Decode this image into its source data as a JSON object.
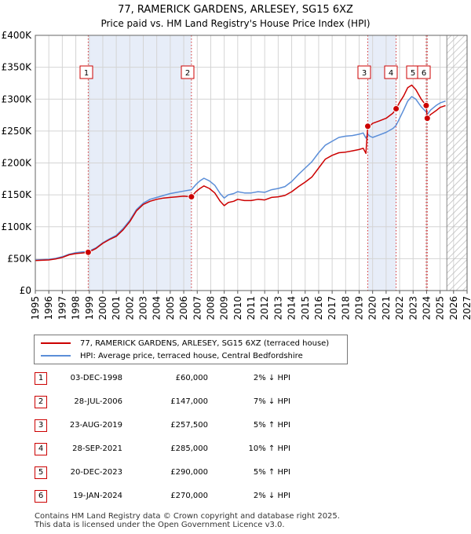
{
  "title_line1": "77, RAMERICK GARDENS, ARLESEY, SG15 6XZ",
  "title_line2": "Price paid vs. HM Land Registry's House Price Index (HPI)",
  "chart_data": {
    "type": "line",
    "title": "77, RAMERICK GARDENS, ARLESEY, SG15 6XZ",
    "subtitle": "Price paid vs. HM Land Registry's House Price Index (HPI)",
    "xlim": [
      1995,
      2027
    ],
    "ylim": [
      0,
      400000
    ],
    "x_ticks": [
      "1995",
      "1996",
      "1997",
      "1998",
      "1999",
      "2000",
      "2001",
      "2002",
      "2003",
      "2004",
      "2005",
      "2006",
      "2007",
      "2008",
      "2009",
      "2010",
      "2011",
      "2012",
      "2013",
      "2014",
      "2015",
      "2016",
      "2017",
      "2018",
      "2019",
      "2020",
      "2021",
      "2022",
      "2023",
      "2024",
      "2025",
      "2026",
      "2027"
    ],
    "y_ticks": [
      {
        "value": 0,
        "label": "£0"
      },
      {
        "value": 50000,
        "label": "£50K"
      },
      {
        "value": 100000,
        "label": "£100K"
      },
      {
        "value": 150000,
        "label": "£150K"
      },
      {
        "value": 200000,
        "label": "£200K"
      },
      {
        "value": 250000,
        "label": "£250K"
      },
      {
        "value": 300000,
        "label": "£300K"
      },
      {
        "value": 350000,
        "label": "£350K"
      },
      {
        "value": 400000,
        "label": "£400K"
      }
    ],
    "grid": true,
    "future_hatch_from": 2025.5,
    "series": [
      {
        "name": "77, RAMERICK GARDENS, ARLESEY, SG15 6XZ (terraced house)",
        "color": "#cc0000",
        "x": [
          1995.0,
          1995.5,
          1996.0,
          1996.5,
          1997.0,
          1997.5,
          1998.0,
          1998.5,
          1998.92,
          1999.5,
          2000.0,
          2000.5,
          2001.0,
          2001.5,
          2002.0,
          2002.5,
          2003.0,
          2003.5,
          2004.0,
          2004.5,
          2005.0,
          2005.5,
          2006.0,
          2006.57,
          2006.9,
          2007.2,
          2007.5,
          2007.9,
          2008.3,
          2008.7,
          2009.0,
          2009.3,
          2009.7,
          2010.0,
          2010.5,
          2011.0,
          2011.5,
          2012.0,
          2012.5,
          2013.0,
          2013.5,
          2014.0,
          2014.5,
          2015.0,
          2015.5,
          2016.0,
          2016.5,
          2017.0,
          2017.5,
          2018.0,
          2018.5,
          2019.0,
          2019.3,
          2019.5,
          2019.64,
          2019.8,
          2020.0,
          2020.5,
          2021.0,
          2021.5,
          2021.74,
          2022.0,
          2022.3,
          2022.6,
          2022.9,
          2023.2,
          2023.6,
          2023.97,
          2024.05,
          2024.3,
          2024.7,
          2025.0,
          2025.4
        ],
        "values": [
          47000,
          47500,
          48000,
          49500,
          52000,
          56000,
          58000,
          59000,
          60000,
          66000,
          74000,
          80000,
          85000,
          95000,
          108000,
          125000,
          135000,
          140000,
          143000,
          145000,
          146000,
          147000,
          148000,
          147000,
          155000,
          160000,
          164000,
          160000,
          153000,
          140000,
          133000,
          138000,
          140000,
          143000,
          141000,
          141000,
          143000,
          142000,
          146000,
          147000,
          149000,
          155000,
          163000,
          170000,
          178000,
          192000,
          206000,
          212000,
          216000,
          217000,
          219000,
          221000,
          223000,
          215000,
          257500,
          258000,
          262000,
          266000,
          270000,
          278000,
          285000,
          295000,
          305000,
          318000,
          322000,
          315000,
          300000,
          290000,
          270000,
          276000,
          282000,
          287000,
          290000
        ]
      },
      {
        "name": "HPI: Average price, terraced house, Central Bedfordshire",
        "color": "#5b8ed8",
        "x": [
          1995.0,
          1995.5,
          1996.0,
          1996.5,
          1997.0,
          1997.5,
          1998.0,
          1998.5,
          1998.92,
          1999.5,
          2000.0,
          2000.5,
          2001.0,
          2001.5,
          2002.0,
          2002.5,
          2003.0,
          2003.5,
          2004.0,
          2004.5,
          2005.0,
          2005.5,
          2006.0,
          2006.57,
          2006.9,
          2007.2,
          2007.5,
          2007.9,
          2008.3,
          2008.7,
          2009.0,
          2009.3,
          2009.7,
          2010.0,
          2010.5,
          2011.0,
          2011.5,
          2012.0,
          2012.5,
          2013.0,
          2013.5,
          2014.0,
          2014.5,
          2015.0,
          2015.5,
          2016.0,
          2016.5,
          2017.0,
          2017.5,
          2018.0,
          2018.5,
          2019.0,
          2019.3,
          2019.5,
          2019.64,
          2019.8,
          2020.0,
          2020.5,
          2021.0,
          2021.5,
          2021.74,
          2022.0,
          2022.3,
          2022.6,
          2022.9,
          2023.2,
          2023.6,
          2023.97,
          2024.05,
          2024.3,
          2024.7,
          2025.0,
          2025.4
        ],
        "values": [
          48000,
          48500,
          49000,
          50500,
          53000,
          57000,
          59500,
          60500,
          61200,
          67000,
          75000,
          81000,
          86500,
          97000,
          110000,
          127000,
          137000,
          143000,
          146000,
          149000,
          152000,
          154000,
          156000,
          158000,
          166000,
          172000,
          176000,
          172000,
          165000,
          152000,
          145000,
          150000,
          152000,
          155000,
          153000,
          153000,
          155000,
          154000,
          158000,
          160000,
          163000,
          171000,
          182000,
          192000,
          202000,
          216000,
          228000,
          234000,
          240000,
          242000,
          243000,
          245000,
          247000,
          239000,
          245000,
          242000,
          240000,
          244000,
          248000,
          254000,
          259000,
          270000,
          283000,
          297000,
          304000,
          300000,
          288000,
          280000,
          276000,
          283000,
          290000,
          294000,
          297000
        ]
      }
    ],
    "sales": [
      {
        "label": "1",
        "x": 1998.92,
        "value": 60000
      },
      {
        "label": "2",
        "x": 2006.57,
        "value": 147000
      },
      {
        "label": "3",
        "x": 2019.64,
        "value": 257500
      },
      {
        "label": "4",
        "x": 2021.74,
        "value": 285000
      },
      {
        "label": "5",
        "x": 2023.97,
        "value": 290000
      },
      {
        "label": "6",
        "x": 2024.05,
        "value": 270000
      }
    ],
    "shaded_periods": [
      {
        "from": 1998.92,
        "to": 2006.57
      },
      {
        "from": 2019.64,
        "to": 2021.74
      },
      {
        "from": 2023.97,
        "to": 2024.05
      }
    ]
  },
  "legend": {
    "items": [
      {
        "label": "77, RAMERICK GARDENS, ARLESEY, SG15 6XZ (terraced house)",
        "color": "#cc0000"
      },
      {
        "label": "HPI: Average price, terraced house, Central Bedfordshire",
        "color": "#5b8ed8"
      }
    ]
  },
  "transactions": [
    {
      "num": "1",
      "date": "03-DEC-1998",
      "price": "£60,000",
      "hpi": "2% ↓ HPI"
    },
    {
      "num": "2",
      "date": "28-JUL-2006",
      "price": "£147,000",
      "hpi": "7% ↓ HPI"
    },
    {
      "num": "3",
      "date": "23-AUG-2019",
      "price": "£257,500",
      "hpi": "5% ↑ HPI"
    },
    {
      "num": "4",
      "date": "28-SEP-2021",
      "price": "£285,000",
      "hpi": "10% ↑ HPI"
    },
    {
      "num": "5",
      "date": "20-DEC-2023",
      "price": "£290,000",
      "hpi": "5% ↑ HPI"
    },
    {
      "num": "6",
      "date": "19-JAN-2024",
      "price": "£270,000",
      "hpi": "2% ↓ HPI"
    }
  ],
  "footer": {
    "line1": "Contains HM Land Registry data © Crown copyright and database right 2025.",
    "line2": "This data is licensed under the Open Government Licence v3.0."
  }
}
